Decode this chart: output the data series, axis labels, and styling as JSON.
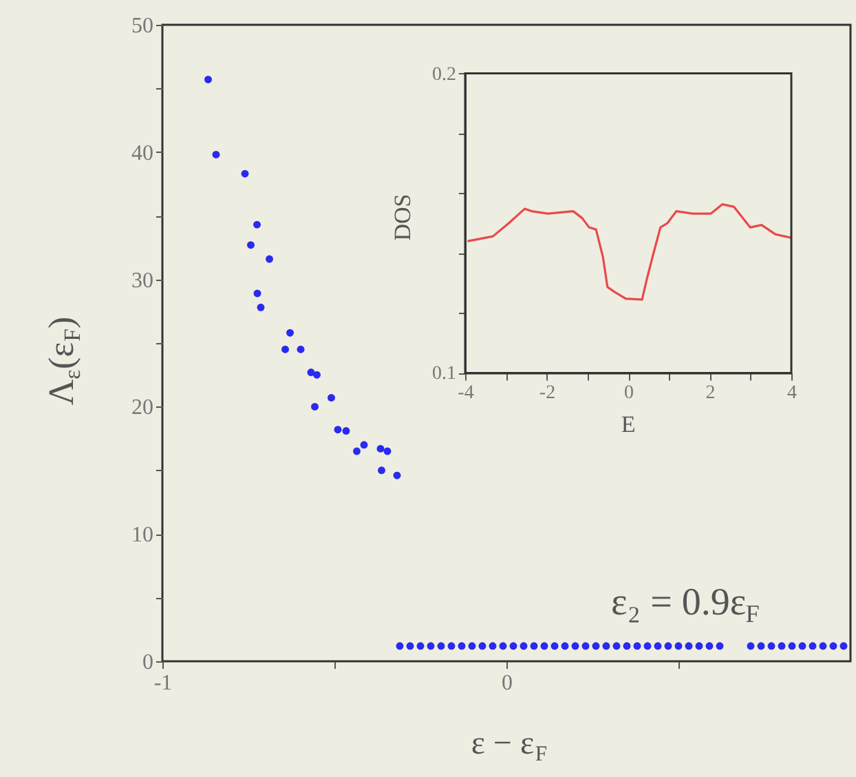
{
  "chart_data": [
    {
      "type": "scatter",
      "xlabel": "ε − ε$_{F}$",
      "ylabel": "Λ$_{ε}$(ε$_{F}$)",
      "annotations": [
        "ε₂ = 0.9ε$_{F}$"
      ],
      "marker": "circle",
      "xlim": [
        -1,
        1
      ],
      "ylim": [
        0,
        50
      ],
      "xticks": [
        -1,
        {
          "value": -0.5,
          "label": null
        },
        0,
        {
          "value": 0.5,
          "label": null
        }
      ],
      "yticks": [
        0,
        {
          "value": 5,
          "label": null
        },
        10,
        {
          "value": 15,
          "label": null
        },
        20,
        {
          "value": 25,
          "label": null
        },
        30,
        {
          "value": 35,
          "label": null
        },
        40,
        {
          "value": 45,
          "label": null
        },
        50
      ],
      "series": [
        {
          "color": "#2a2af0",
          "x": [
            -0.867,
            -0.844,
            -0.76,
            -0.725,
            -0.743,
            -0.689,
            -0.724,
            -0.714,
            -0.629,
            -0.643,
            -0.598,
            -0.568,
            -0.551,
            -0.509,
            -0.557,
            -0.49,
            -0.466,
            -0.414,
            -0.435,
            -0.366,
            -0.346,
            -0.363,
            -0.318
          ],
          "values": [
            45.7,
            39.8,
            38.3,
            34.3,
            32.7,
            31.6,
            28.9,
            27.8,
            25.8,
            24.5,
            24.5,
            22.7,
            22.5,
            20.7,
            20.0,
            18.2,
            18.1,
            17.0,
            16.5,
            16.7,
            16.5,
            15.0,
            14.6
          ]
        },
        {
          "color": "#2a2af0",
          "x": [
            -0.31,
            -0.28,
            -0.25,
            -0.22,
            -0.19,
            -0.16,
            -0.13,
            -0.1,
            -0.07,
            -0.04,
            -0.01,
            0.02,
            0.05,
            0.08,
            0.11,
            0.14,
            0.17,
            0.2,
            0.23,
            0.26,
            0.29,
            0.32,
            0.35,
            0.38,
            0.41,
            0.44,
            0.47,
            0.5,
            0.53,
            0.56,
            0.59,
            0.62,
            0.71,
            0.74,
            0.77,
            0.8,
            0.83,
            0.86,
            0.89,
            0.92,
            0.95,
            0.98
          ],
          "values": [
            1.2,
            1.2,
            1.2,
            1.2,
            1.2,
            1.2,
            1.2,
            1.2,
            1.2,
            1.2,
            1.2,
            1.2,
            1.2,
            1.2,
            1.2,
            1.2,
            1.2,
            1.2,
            1.2,
            1.2,
            1.2,
            1.2,
            1.2,
            1.2,
            1.2,
            1.2,
            1.2,
            1.2,
            1.2,
            1.2,
            1.2,
            1.2,
            1.2,
            1.2,
            1.2,
            1.2,
            1.2,
            1.2,
            1.2,
            1.2,
            1.2,
            1.2
          ]
        }
      ]
    },
    {
      "type": "line",
      "xlabel": "E",
      "ylabel": "DOS",
      "line_style": "solid",
      "marker": "none",
      "xlim": [
        -4,
        4
      ],
      "ylim": [
        0.1,
        0.2
      ],
      "xticks": [
        -4,
        {
          "value": -3,
          "label": null
        },
        -2,
        {
          "value": -1,
          "label": null
        },
        0,
        {
          "value": 1,
          "label": null
        },
        2,
        {
          "value": 3,
          "label": null
        },
        4
      ],
      "yticks": [
        0.1,
        {
          "value": 0.12,
          "label": null
        },
        {
          "value": 0.14,
          "label": null
        },
        {
          "value": 0.16,
          "label": null
        },
        {
          "value": 0.18,
          "label": null
        },
        0.2
      ],
      "series": [
        {
          "color": "#e84a4a",
          "x": [
            -3.94,
            -3.32,
            -2.93,
            -2.54,
            -2.37,
            -1.97,
            -1.35,
            -1.13,
            -0.96,
            -0.79,
            -0.62,
            -0.51,
            -0.34,
            -0.06,
            0.34,
            0.45,
            0.62,
            0.79,
            0.96,
            1.18,
            1.58,
            2.03,
            2.31,
            2.59,
            2.99,
            3.27,
            3.61,
            4.0
          ],
          "values": [
            0.144,
            0.1456,
            0.15,
            0.1548,
            0.154,
            0.1532,
            0.154,
            0.1517,
            0.1486,
            0.1479,
            0.1387,
            0.1287,
            0.1271,
            0.1248,
            0.1245,
            0.131,
            0.14,
            0.1486,
            0.15,
            0.154,
            0.1532,
            0.1532,
            0.1563,
            0.1555,
            0.1486,
            0.1494,
            0.1463,
            0.1451
          ]
        }
      ]
    }
  ]
}
